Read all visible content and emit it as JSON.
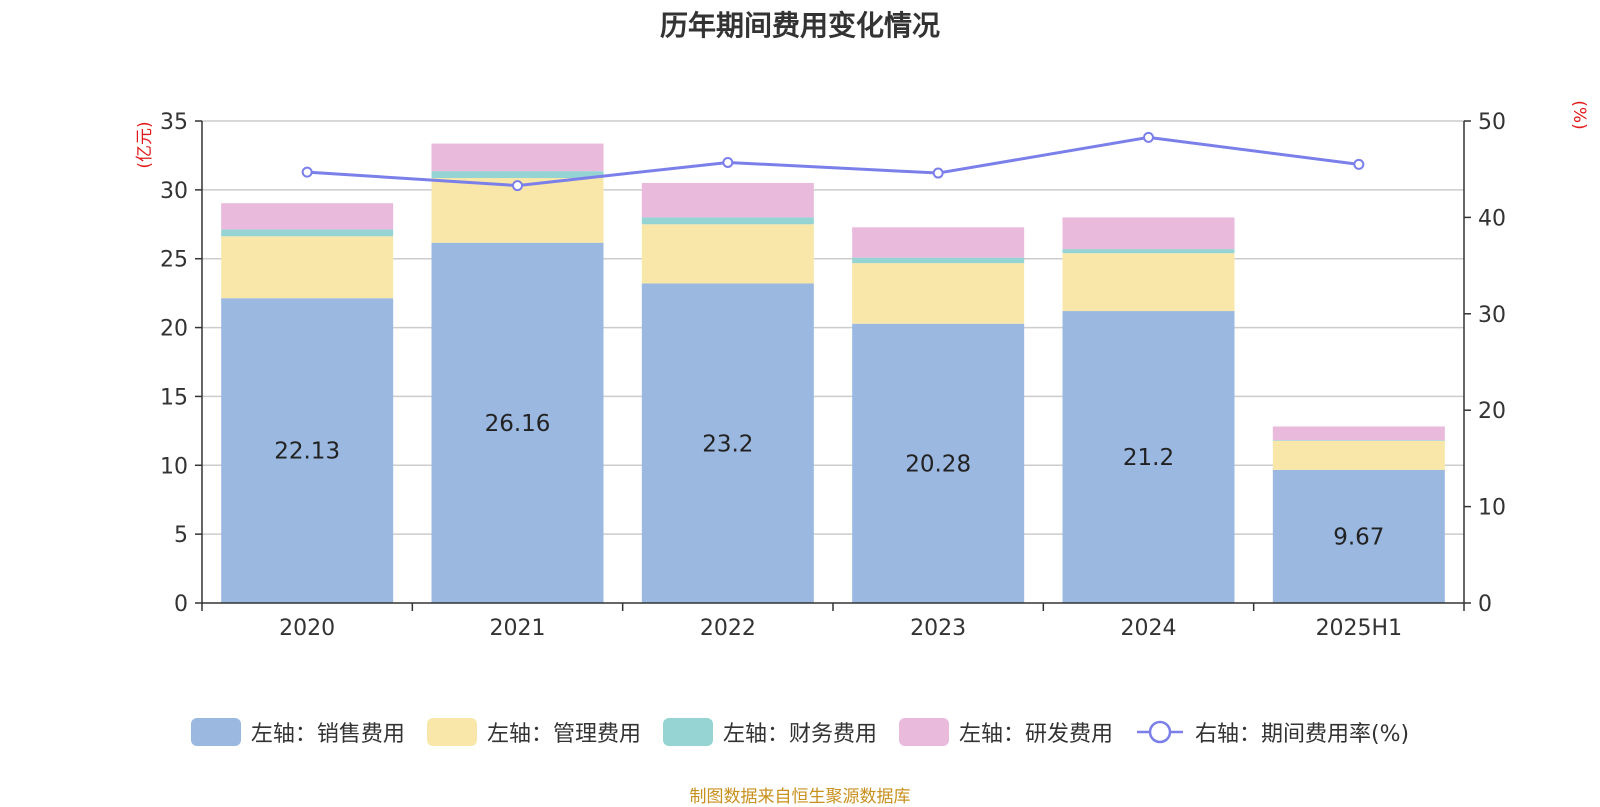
{
  "chart_data": {
    "type": "bar",
    "title": "历年期间费用变化情况",
    "categories": [
      "2020",
      "2021",
      "2022",
      "2023",
      "2024",
      "2025H1"
    ],
    "stacked": true,
    "y_left": {
      "label": "(亿元)",
      "lim": [
        0,
        35
      ],
      "ticks": [
        0,
        5,
        10,
        15,
        20,
        25,
        30,
        35
      ]
    },
    "y_right": {
      "label": "(%)",
      "lim": [
        0,
        50
      ],
      "ticks": [
        0,
        10,
        20,
        30,
        40,
        50
      ]
    },
    "series": [
      {
        "name": "左轴：销售费用",
        "type": "bar",
        "axis": "left",
        "color": "#9bb8e1",
        "values": [
          22.13,
          26.16,
          23.2,
          20.28,
          21.2,
          9.67
        ],
        "labels": [
          "22.13",
          "26.16",
          "23.2",
          "20.28",
          "21.2",
          "9.67"
        ]
      },
      {
        "name": "左轴：管理费用",
        "type": "bar",
        "axis": "left",
        "color": "#f8e7a9",
        "values": [
          4.5,
          4.7,
          4.3,
          4.4,
          4.2,
          2.1
        ]
      },
      {
        "name": "左轴：财务费用",
        "type": "bar",
        "axis": "left",
        "color": "#96d3d3",
        "values": [
          0.5,
          0.5,
          0.5,
          0.4,
          0.3,
          0.05
        ]
      },
      {
        "name": "左轴：研发费用",
        "type": "bar",
        "axis": "left",
        "color": "#e9badb",
        "values": [
          1.9,
          2.0,
          2.5,
          2.2,
          2.3,
          1.0
        ]
      },
      {
        "name": "右轴：期间费用率(%)",
        "type": "line",
        "axis": "right",
        "color": "#7b7fe9",
        "values": [
          44.7,
          43.3,
          45.7,
          44.6,
          48.3,
          45.5
        ]
      }
    ],
    "grid": true,
    "legend_position": "bottom"
  },
  "source": "制图数据来自恒生聚源数据库"
}
